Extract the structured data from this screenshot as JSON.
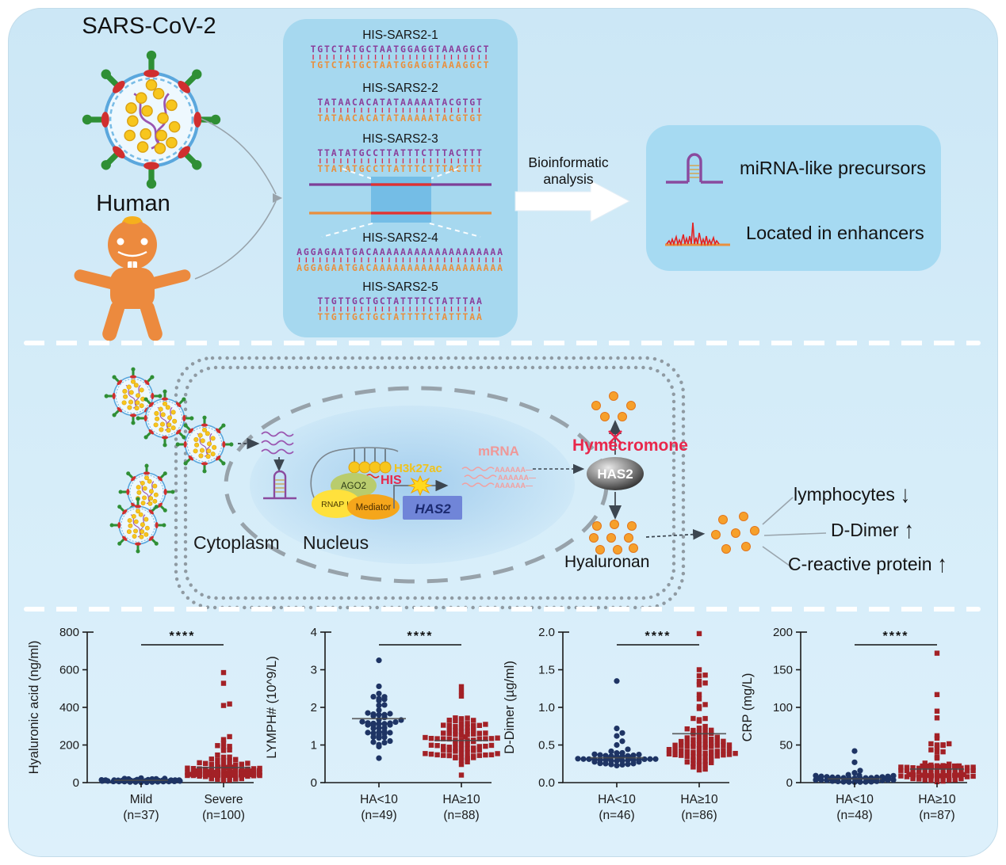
{
  "figure": {
    "top": {
      "virus_label": "SARS-CoV-2",
      "human_label": "Human",
      "sequence_panel": {
        "items": [
          {
            "type": "sequence",
            "name": "HIS-SARS2-1",
            "sequence": "TGTCTATGCTAATGGAGGTAAAGGCT"
          },
          {
            "type": "sequence",
            "name": "HIS-SARS2-2",
            "sequence": "TATAACACATATAAAAATACGTGT"
          },
          {
            "type": "sequence",
            "name": "HIS-SARS2-3",
            "sequence": "TTATATGCCTTATTTCTTTACTTT"
          },
          {
            "type": "alignment-diagram"
          },
          {
            "type": "sequence",
            "name": "HIS-SARS2-4",
            "sequence": "AGGAGAATGACAAAAAAAAAAAAAAAAAAA"
          },
          {
            "type": "sequence",
            "name": "HIS-SARS2-5",
            "sequence": "TTGTTGCTGCTATTTTCTATTTAA"
          }
        ]
      },
      "process": {
        "line1": "Bioinformatic",
        "line2": "analysis"
      },
      "findings": {
        "items": [
          {
            "icon": "hairpin-icon",
            "label": "miRNA-like precursors"
          },
          {
            "icon": "enhancer-peaks-icon",
            "label": "Located in enhancers"
          }
        ]
      }
    },
    "middle": {
      "cytoplasm_label": "Cytoplasm",
      "nucleus_label": "Nucleus",
      "complex": {
        "ago2": "AGO2",
        "rnap": "RNAP II",
        "mediator": "Mediator",
        "has2_gene": "HAS2",
        "h3k27ac": "H3k27ac",
        "his": "HIS"
      },
      "mrna_label": "mRNA",
      "mrna_tail": "AAAAAA—",
      "hymecromone_label": "Hymecromone",
      "has2_protein": "HAS2",
      "hyaluronan_label": "Hyaluronan",
      "outcomes": [
        {
          "label": "lymphocytes",
          "arrow": "↓"
        },
        {
          "label": "D-Dimer",
          "arrow": "↑"
        },
        {
          "label": "C-reactive protein",
          "arrow": "↑"
        }
      ]
    }
  },
  "colors": {
    "panel_bg": "#d2eaf7",
    "card_bg": "#a6d8ef",
    "strand_top": "#8a3f9b",
    "strand_bottom": "#e98f3d",
    "tick_red": "#d6264f",
    "navy_points": "#1e3464",
    "red_points": "#a32126",
    "accent_red": "#e8274b",
    "orange_dot": "#f6a02b",
    "membrane_gray": "#8f9aa2",
    "mrna_pink": "#ef9898"
  },
  "chart_data": [
    {
      "type": "swarm",
      "ylabel": "Hyaluronic acid (ng/ml)",
      "ylim": [
        0,
        800
      ],
      "yticks": [
        "0",
        "200",
        "400",
        "600",
        "800"
      ],
      "significance": "****",
      "groups": [
        {
          "label": "Mild",
          "n_label": "(n=37)",
          "n": 37,
          "marker": "circle",
          "color": "#1e3464",
          "mean_line": 12,
          "clusters": [
            {
              "n": 37,
              "mean": 9,
              "sd": 6,
              "min": 1,
              "max": 26
            }
          ],
          "outliers": []
        },
        {
          "label": "Severe",
          "n_label": "(n=100)",
          "n": 100,
          "marker": "square",
          "color": "#a32126",
          "mean_line": 80,
          "clusters": [
            {
              "n": 80,
              "mean": 55,
              "sd": 26,
              "min": 8,
              "max": 108
            },
            {
              "n": 16,
              "mean": 185,
              "sd": 55,
              "min": 112,
              "max": 300
            }
          ],
          "outliers": [
            410,
            418,
            528,
            585
          ]
        }
      ]
    },
    {
      "type": "swarm",
      "ylabel": "LYMPH# (10^9/L)",
      "ylim": [
        0,
        4
      ],
      "yticks": [
        "0",
        "1",
        "2",
        "3",
        "4"
      ],
      "significance": "****",
      "groups": [
        {
          "label": "HA<10",
          "n_label": "(n=49)",
          "n": 49,
          "marker": "circle",
          "color": "#1e3464",
          "mean_line": 1.7,
          "clusters": [
            {
              "n": 47,
              "mean": 1.7,
              "sd": 0.45,
              "min": 0.95,
              "max": 2.6
            }
          ],
          "outliers": [
            3.25,
            0.65
          ]
        },
        {
          "label": "HA≥10",
          "n_label": "(n=88)",
          "n": 88,
          "marker": "square",
          "color": "#a32126",
          "mean_line": 1.12,
          "clusters": [
            {
              "n": 84,
              "mean": 1.1,
              "sd": 0.33,
              "min": 0.45,
              "max": 1.9
            }
          ],
          "outliers": [
            2.55,
            2.42,
            2.3,
            0.2
          ]
        }
      ]
    },
    {
      "type": "swarm",
      "ylabel": "D-Dimer (µg/ml)",
      "ylim": [
        0,
        2
      ],
      "yticks": [
        "0.0",
        "0.5",
        "1.0",
        "1.5",
        "2.0"
      ],
      "significance": "****",
      "groups": [
        {
          "label": "HA<10",
          "n_label": "(n=46)",
          "n": 46,
          "marker": "circle",
          "color": "#1e3464",
          "mean_line": 0.33,
          "clusters": [
            {
              "n": 40,
              "mean": 0.3,
              "sd": 0.08,
              "min": 0.13,
              "max": 0.47
            }
          ],
          "outliers": [
            1.35,
            0.72,
            0.66,
            0.62,
            0.55,
            0.5
          ]
        },
        {
          "label": "HA≥10",
          "n_label": "(n=86)",
          "n": 86,
          "marker": "square",
          "color": "#a32126",
          "mean_line": 0.65,
          "clusters": [
            {
              "n": 70,
              "mean": 0.48,
              "sd": 0.14,
              "min": 0.15,
              "max": 0.76
            },
            {
              "n": 12,
              "mean": 1.05,
              "sd": 0.2,
              "min": 0.8,
              "max": 1.45
            }
          ],
          "outliers": [
            1.98,
            1.5,
            1.42,
            1.3
          ]
        }
      ]
    },
    {
      "type": "swarm",
      "ylabel": "CRP (mg/L)",
      "ylim": [
        0,
        200
      ],
      "yticks": [
        "0",
        "50",
        "100",
        "150",
        "200"
      ],
      "significance": "****",
      "groups": [
        {
          "label": "HA<10",
          "n_label": "(n=48)",
          "n": 48,
          "marker": "circle",
          "color": "#1e3464",
          "mean_line": 5,
          "clusters": [
            {
              "n": 44,
              "mean": 4,
              "sd": 3,
              "min": 0.4,
              "max": 11
            }
          ],
          "outliers": [
            42,
            27,
            16,
            13
          ]
        },
        {
          "label": "HA≥10",
          "n_label": "(n=87)",
          "n": 87,
          "marker": "square",
          "color": "#a32126",
          "mean_line": 18,
          "clusters": [
            {
              "n": 70,
              "mean": 13,
              "sd": 7,
              "min": 1,
              "max": 27
            },
            {
              "n": 13,
              "mean": 45,
              "sd": 12,
              "min": 30,
              "max": 66
            }
          ],
          "outliers": [
            172,
            117,
            95,
            86
          ]
        }
      ]
    }
  ]
}
